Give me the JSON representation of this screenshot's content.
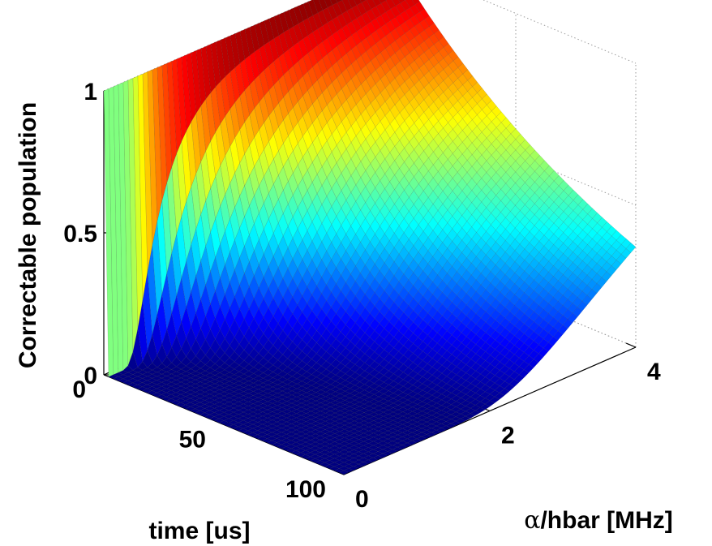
{
  "chart_data": {
    "type": "surface",
    "title": "",
    "xlabel": "time [us]",
    "ylabel": "α/hbar [MHz]",
    "ylabel_parts": {
      "symbol": "α",
      "rest": "/hbar [MHz]"
    },
    "zlabel": "Correctable population",
    "xlim": [
      0,
      100
    ],
    "ylim": [
      0,
      4
    ],
    "zlim": [
      0,
      1
    ],
    "xticks": [
      "0",
      "50",
      "100"
    ],
    "yticks": [
      "0",
      "2",
      "4"
    ],
    "zticks": [
      "0",
      "0.5",
      "1"
    ],
    "grid": true,
    "colormap": "jet",
    "surface_description": "z(t, a) = exp(-t / (k * a^2)); population near 1 at t=0 for all a, decays quickly at small a and slowly at large a",
    "sample_grid": {
      "t": [
        0,
        10,
        20,
        30,
        50,
        75,
        100
      ],
      "alpha": [
        0.5,
        1,
        2,
        3,
        4
      ],
      "z_rows_by_alpha": [
        [
          1.0,
          0.0,
          0.0,
          0.0,
          0.0,
          0.0,
          0.0
        ],
        [
          1.0,
          0.37,
          0.14,
          0.05,
          0.01,
          0.0,
          0.0
        ],
        [
          1.0,
          0.78,
          0.61,
          0.47,
          0.29,
          0.15,
          0.08
        ],
        [
          1.0,
          0.9,
          0.8,
          0.72,
          0.57,
          0.43,
          0.33
        ],
        [
          1.0,
          0.94,
          0.88,
          0.83,
          0.73,
          0.62,
          0.54
        ]
      ]
    }
  }
}
